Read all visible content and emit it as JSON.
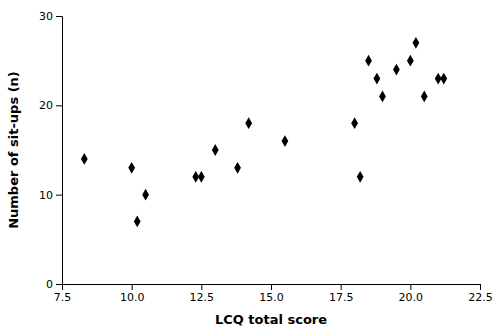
{
  "chart_data": {
    "type": "scatter",
    "x": [
      8.3,
      10.0,
      10.2,
      10.5,
      12.3,
      12.5,
      13.0,
      13.8,
      14.2,
      15.5,
      18.0,
      18.2,
      18.5,
      18.8,
      19.0,
      19.5,
      20.0,
      20.2,
      20.5,
      21.0,
      21.2
    ],
    "y": [
      14,
      13,
      7,
      10,
      12,
      12,
      15,
      13,
      18,
      16,
      18,
      12,
      25,
      23,
      21,
      24,
      25,
      27,
      21,
      23,
      23
    ],
    "xlabel": "LCQ total score",
    "ylabel": "Number of sit-ups (n)",
    "xlim": [
      7.5,
      22.5
    ],
    "ylim": [
      0,
      30
    ],
    "xticks": [
      7.5,
      {
        "value": 10,
        "label": "10.0"
      },
      12.5,
      {
        "value": 15,
        "label": "15.0"
      },
      17.5,
      {
        "value": 20,
        "label": "20.0"
      },
      22.5
    ],
    "yticks": [
      0,
      10,
      20,
      30
    ],
    "marker": "diamond",
    "color": "#000000"
  }
}
